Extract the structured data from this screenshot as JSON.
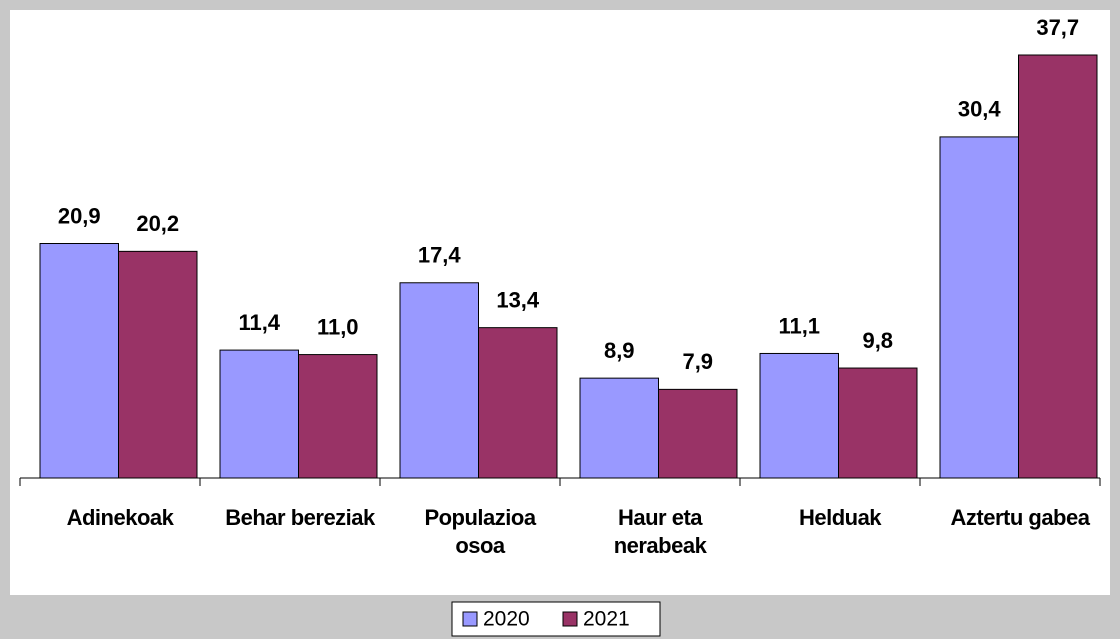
{
  "chart_data": {
    "type": "bar",
    "categories": [
      "Adinekoak",
      "Behar bereziak",
      "Populazioa osoa",
      "Haur eta nerabeak",
      "Helduak",
      "Aztertu gabea"
    ],
    "series": [
      {
        "name": "2020",
        "color": "#9999ff",
        "values": [
          20.9,
          11.4,
          17.4,
          8.9,
          11.1,
          30.4
        ],
        "value_labels": [
          "20,9",
          "11,4",
          "17,4",
          "8,9",
          "11,1",
          "30,4"
        ]
      },
      {
        "name": "2021",
        "color": "#993366",
        "values": [
          20.2,
          11.0,
          13.4,
          7.9,
          9.8,
          37.7
        ],
        "value_labels": [
          "20,2",
          "11,0",
          "13,4",
          "7,9",
          "9,8",
          "37,7"
        ]
      }
    ],
    "ylim": [
      0,
      40
    ],
    "legend": "bottom"
  }
}
